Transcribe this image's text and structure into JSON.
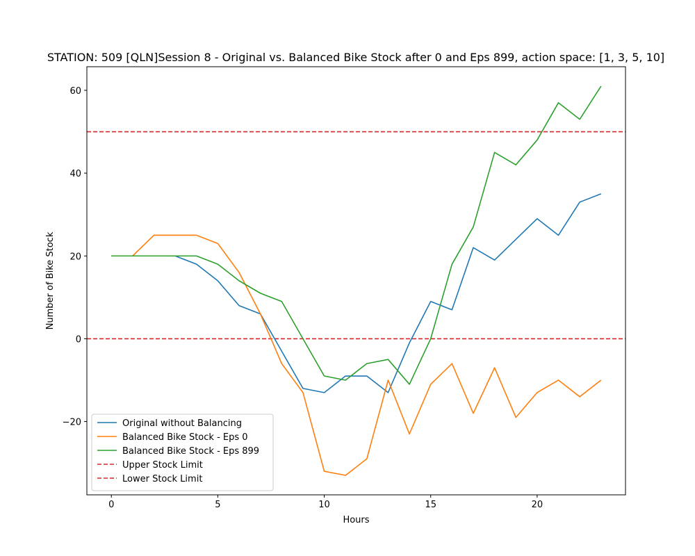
{
  "chart_data": {
    "type": "line",
    "title": "STATION: 509 [QLN]Session 8 - Original vs. Balanced Bike Stock after 0 and Eps 899, action space: [1, 3, 5, 10]",
    "xlabel": "Hours",
    "ylabel": "Number of Bike Stock",
    "xlim": [
      -1.15,
      24.15
    ],
    "ylim": [
      -37.7,
      65.7
    ],
    "xticks": [
      0,
      5,
      10,
      15,
      20
    ],
    "yticks": [
      -20,
      0,
      20,
      40,
      60
    ],
    "grid": false,
    "legend_position": "lower-left",
    "x": [
      0,
      1,
      2,
      3,
      4,
      5,
      6,
      7,
      8,
      9,
      10,
      11,
      12,
      13,
      14,
      15,
      16,
      17,
      18,
      19,
      20,
      21,
      22,
      23
    ],
    "series": [
      {
        "name": "Original without Balancing",
        "color": "#1f77b4",
        "style": "solid",
        "values": [
          20,
          20,
          20,
          20,
          18,
          14,
          8,
          6,
          -3,
          -12,
          -13,
          -9,
          -9,
          -13,
          -1,
          9,
          7,
          22,
          19,
          24,
          29,
          25,
          33,
          35
        ]
      },
      {
        "name": "Balanced Bike Stock - Eps 0",
        "color": "#ff7f0e",
        "style": "solid",
        "values": [
          20,
          20,
          25,
          25,
          25,
          23,
          16,
          6,
          -6,
          -13,
          -32,
          -33,
          -29,
          -10,
          -23,
          -11,
          -6,
          -18,
          -7,
          -19,
          -13,
          -10,
          -14,
          -10
        ]
      },
      {
        "name": "Balanced Bike Stock - Eps 899",
        "color": "#2ca02c",
        "style": "solid",
        "values": [
          20,
          20,
          20,
          20,
          20,
          18,
          14,
          11,
          9,
          0,
          -9,
          -10,
          -6,
          -5,
          -11,
          0,
          18,
          27,
          45,
          42,
          48,
          57,
          53,
          61
        ]
      }
    ],
    "hlines": [
      {
        "name": "Upper Stock Limit",
        "y": 50,
        "color": "#d62728",
        "style": "dashed"
      },
      {
        "name": "Lower Stock Limit",
        "y": 0,
        "color": "#d62728",
        "style": "dashed"
      }
    ]
  }
}
